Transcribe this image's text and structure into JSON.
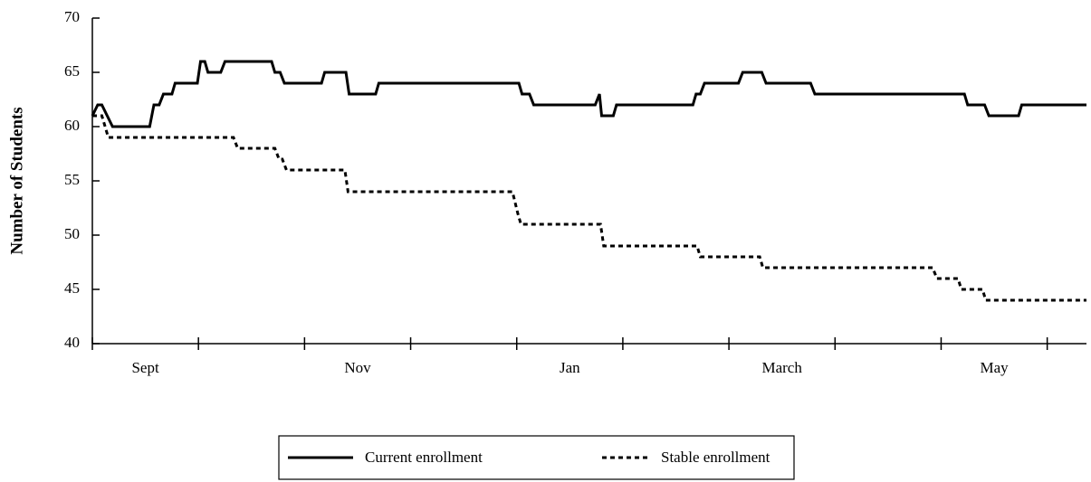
{
  "chart_data": {
    "type": "line",
    "ylabel": "Number of Students",
    "categories": [
      "Sept",
      null,
      "Nov",
      null,
      "Jan",
      null,
      "March",
      null,
      "May",
      null
    ],
    "xlim": [
      0,
      9.37
    ],
    "xticks": [
      0,
      1,
      2,
      3,
      4,
      5,
      6,
      7,
      8,
      9
    ],
    "ylim": [
      40,
      70
    ],
    "yticks": [
      40,
      45,
      50,
      55,
      60,
      65,
      70
    ],
    "series": [
      {
        "name": "Current enrollment",
        "color": "#000000",
        "style": "solid",
        "x": [
          0,
          0.05,
          0.09,
          0.14,
          0.19,
          0.54,
          0.58,
          0.63,
          0.67,
          0.75,
          0.78,
          0.99,
          1.02,
          1.06,
          1.09,
          1.21,
          1.25,
          1.69,
          1.72,
          1.77,
          1.81,
          2.16,
          2.19,
          2.39,
          2.42,
          2.67,
          2.7,
          4.02,
          4.05,
          4.12,
          4.16,
          4.74,
          4.78,
          4.8,
          4.91,
          4.94,
          5.66,
          5.69,
          5.73,
          5.77,
          6.09,
          6.13,
          6.31,
          6.35,
          6.77,
          6.81,
          8.22,
          8.25,
          8.41,
          8.45,
          8.73,
          8.76,
          9.37
        ],
        "values": [
          61,
          62,
          62,
          61,
          60,
          60,
          62,
          62,
          63,
          63,
          64,
          64,
          66,
          66,
          65,
          65,
          66,
          66,
          65,
          65,
          64,
          64,
          65,
          65,
          63,
          63,
          64,
          64,
          63,
          63,
          62,
          62,
          63,
          61,
          61,
          62,
          62,
          63,
          63,
          64,
          64,
          65,
          65,
          64,
          64,
          63,
          63,
          62,
          62,
          61,
          61,
          62,
          62
        ]
      },
      {
        "name": "Stable enrollment",
        "color": "#000000",
        "style": "dashed",
        "x": [
          0,
          0.09,
          0.12,
          0.15,
          1.33,
          1.37,
          1.72,
          1.76,
          1.79,
          1.83,
          2.38,
          2.41,
          3.96,
          4.01,
          4.04,
          4.79,
          4.82,
          5.7,
          5.73,
          6.29,
          6.32,
          7.92,
          7.96,
          8.16,
          8.19,
          8.39,
          8.42,
          9.37
        ],
        "values": [
          61,
          61,
          60,
          59,
          59,
          58,
          58,
          57,
          57,
          56,
          56,
          54,
          54,
          52,
          51,
          51,
          49,
          49,
          48,
          48,
          47,
          47,
          46,
          46,
          45,
          45,
          44,
          44
        ]
      }
    ],
    "legend": "bottom"
  }
}
